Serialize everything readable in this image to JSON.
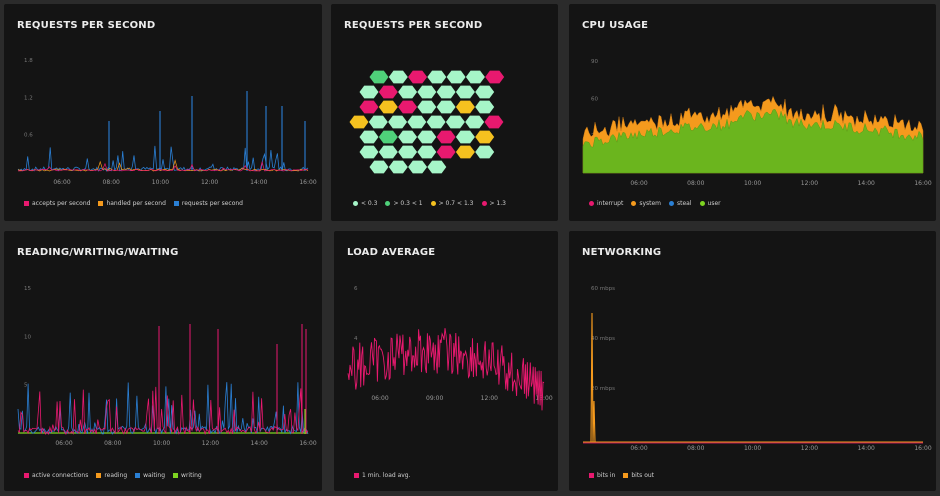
{
  "colors": {
    "bg": "#2b2b2b",
    "panel": "#141414",
    "pink": "#e8196f",
    "orange": "#f59a1d",
    "blue": "#2a7fd4",
    "green": "#7ed321",
    "mint": "#a6f5c8",
    "dark_green": "#4fd17a",
    "yellow": "#f5c11f"
  },
  "panels": [
    {
      "title": "REQUESTS PER SECOND",
      "legend": [
        {
          "label": "accepts per second",
          "color": "#e8196f"
        },
        {
          "label": "handled per second",
          "color": "#f59a1d"
        },
        {
          "label": "requests per second",
          "color": "#2a7fd4"
        }
      ]
    },
    {
      "title": "REQUESTS PER SECOND",
      "legend": [
        {
          "label": "< 0.3",
          "color": "#a6f5c8"
        },
        {
          "label": "> 0.3 < 1",
          "color": "#4fd17a"
        },
        {
          "label": "> 0.7 < 1.3",
          "color": "#f5c11f"
        },
        {
          "label": "> 1.3",
          "color": "#e8196f"
        }
      ]
    },
    {
      "title": "CPU USAGE",
      "legend": [
        {
          "label": "interrupt",
          "color": "#e8196f"
        },
        {
          "label": "system",
          "color": "#f59a1d"
        },
        {
          "label": "steal",
          "color": "#2a7fd4"
        },
        {
          "label": "user",
          "color": "#7ed321"
        }
      ]
    },
    {
      "title": "READING/WRITING/WAITING",
      "legend": [
        {
          "label": "active connections",
          "color": "#e8196f"
        },
        {
          "label": "reading",
          "color": "#f59a1d"
        },
        {
          "label": "waiting",
          "color": "#2a7fd4"
        },
        {
          "label": "writing",
          "color": "#7ed321"
        }
      ]
    },
    {
      "title": "LOAD AVERAGE",
      "legend": [
        {
          "label": "1 min. load avg.",
          "color": "#e8196f"
        }
      ]
    },
    {
      "title": "NETWORKING",
      "legend": [
        {
          "label": "bits in",
          "color": "#e8196f"
        },
        {
          "label": "bits out",
          "color": "#f59a1d"
        }
      ]
    }
  ],
  "chart_data": [
    {
      "type": "line",
      "x": [
        "06:00",
        "08:00",
        "10:00",
        "12:00",
        "14:00",
        "16:00"
      ],
      "ylim": [
        0,
        1.8
      ],
      "yticks": [
        "1.8",
        "1.2",
        "0.6"
      ],
      "series": [
        {
          "name": "accepts per second",
          "values": [
            0.02,
            0.03,
            0.02,
            0.04,
            0.03,
            0.05
          ]
        },
        {
          "name": "handled per second",
          "values": [
            0.03,
            0.04,
            0.03,
            0.05,
            0.04,
            0.06
          ]
        },
        {
          "name": "requests per second",
          "values": [
            0.15,
            0.2,
            0.25,
            0.6,
            0.5,
            0.55
          ],
          "peak": 1.5
        }
      ],
      "grid": false
    },
    {
      "type": "heatmap",
      "rows": [
        [
          "dark",
          "mint",
          "pink",
          "mint",
          "mint",
          "mint",
          "pink"
        ],
        [
          "mint",
          "pink",
          "mint",
          "mint",
          "mint",
          "mint",
          "mint"
        ],
        [
          "pink",
          "yellow",
          "pink",
          "mint",
          "mint",
          "yellow",
          "mint"
        ],
        [
          "yellow",
          "mint",
          "mint",
          "mint",
          "mint",
          "mint",
          "mint",
          "pink"
        ],
        [
          "mint",
          "dark",
          "mint",
          "mint",
          "pink",
          "mint",
          "yellow"
        ],
        [
          "mint",
          "mint",
          "mint",
          "mint",
          "pink",
          "yellow",
          "mint"
        ],
        [
          "mint",
          "mint",
          "mint",
          "mint"
        ]
      ]
    },
    {
      "type": "area",
      "x": [
        "06:00",
        "08:00",
        "10:00",
        "12:00",
        "14:00",
        "16:00"
      ],
      "ylim": [
        0,
        90
      ],
      "yticks": [
        "90",
        "60",
        "30"
      ],
      "series": [
        {
          "name": "user",
          "values": [
            38,
            44,
            48,
            46,
            42,
            40
          ]
        },
        {
          "name": "system",
          "values": [
            8,
            10,
            12,
            11,
            9,
            8
          ]
        }
      ],
      "grid": false
    },
    {
      "type": "line",
      "x": [
        "06:00",
        "08:00",
        "10:00",
        "12:00",
        "14:00",
        "16:00"
      ],
      "ylim": [
        0,
        15
      ],
      "yticks": [
        "15",
        "10",
        "5"
      ],
      "series": [
        {
          "name": "active connections",
          "values": [
            1,
            2,
            2,
            3,
            3,
            4
          ],
          "peak": 11
        },
        {
          "name": "waiting",
          "values": [
            1,
            1,
            2,
            2,
            2,
            3
          ],
          "peak": 9
        },
        {
          "name": "writing",
          "values": [
            0,
            0,
            0,
            0,
            0,
            1
          ]
        }
      ],
      "grid": false
    },
    {
      "type": "line",
      "x": [
        "06:00",
        "09:00",
        "12:00",
        "15:00"
      ],
      "ylim": [
        0,
        6
      ],
      "yticks": [
        "6",
        "4"
      ],
      "series": [
        {
          "name": "1 min. load avg.",
          "values": [
            3.0,
            3.4,
            2.8,
            2.4
          ]
        }
      ],
      "grid": false
    },
    {
      "type": "line",
      "x": [
        "06:00",
        "08:00",
        "10:00",
        "12:00",
        "14:00",
        "16:00"
      ],
      "ylim": [
        0,
        60
      ],
      "yticks": [
        "60 mbps",
        "40 mbps",
        "20 mbps"
      ],
      "series": [
        {
          "name": "bits in",
          "values": [
            0.3,
            0.3,
            0.3,
            0.3,
            0.3,
            0.3
          ]
        },
        {
          "name": "bits out",
          "values": [
            0.5,
            0.5,
            0.5,
            0.5,
            0.5,
            0.5
          ],
          "peak": 52
        }
      ],
      "grid": false
    }
  ]
}
